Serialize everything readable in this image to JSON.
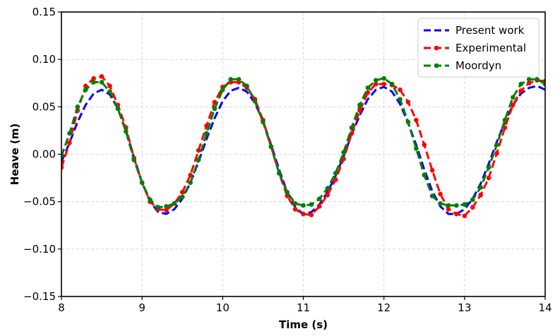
{
  "chart_data": {
    "type": "line",
    "title": "",
    "xlabel": "Time (s)",
    "ylabel": "Heave (m)",
    "xlim": [
      8,
      14
    ],
    "ylim": [
      -0.15,
      0.15
    ],
    "x_ticks": [
      8,
      9,
      10,
      11,
      12,
      13,
      14
    ],
    "y_ticks": [
      -0.15,
      -0.1,
      -0.05,
      0.0,
      0.05,
      0.1,
      0.15
    ],
    "x_tick_labels": [
      "8",
      "9",
      "10",
      "11",
      "12",
      "13",
      "14"
    ],
    "y_tick_labels": [
      "−0.15",
      "−0.10",
      "−0.05",
      "0.00",
      "0.05",
      "0.10",
      "0.15"
    ],
    "grid": true,
    "legend_position": "top-right",
    "series": [
      {
        "name": "Present work",
        "color": "#0000ff",
        "style": "dashed",
        "markers": false,
        "x": [
          8.0,
          8.1,
          8.2,
          8.3,
          8.4,
          8.5,
          8.6,
          8.7,
          8.8,
          8.9,
          9.0,
          9.1,
          9.2,
          9.3,
          9.4,
          9.5,
          9.6,
          9.7,
          9.8,
          9.9,
          10.0,
          10.1,
          10.2,
          10.3,
          10.4,
          10.5,
          10.6,
          10.7,
          10.8,
          10.9,
          11.0,
          11.1,
          11.2,
          11.3,
          11.4,
          11.5,
          11.6,
          11.7,
          11.8,
          11.9,
          12.0,
          12.1,
          12.2,
          12.3,
          12.4,
          12.5,
          12.6,
          12.7,
          12.8,
          12.9,
          13.0,
          13.1,
          13.2,
          13.3,
          13.4,
          13.5,
          13.6,
          13.7,
          13.8,
          13.9,
          14.0
        ],
        "values": [
          -0.008,
          0.012,
          0.034,
          0.052,
          0.064,
          0.068,
          0.063,
          0.048,
          0.025,
          -0.003,
          -0.03,
          -0.05,
          -0.061,
          -0.063,
          -0.058,
          -0.047,
          -0.03,
          -0.008,
          0.016,
          0.038,
          0.056,
          0.067,
          0.07,
          0.066,
          0.054,
          0.035,
          0.01,
          -0.016,
          -0.04,
          -0.056,
          -0.063,
          -0.061,
          -0.053,
          -0.04,
          -0.023,
          -0.002,
          0.021,
          0.041,
          0.058,
          0.068,
          0.071,
          0.066,
          0.053,
          0.033,
          0.01,
          -0.016,
          -0.039,
          -0.055,
          -0.063,
          -0.063,
          -0.058,
          -0.047,
          -0.031,
          -0.01,
          0.013,
          0.034,
          0.052,
          0.064,
          0.07,
          0.072,
          0.068
        ]
      },
      {
        "name": "Experimental",
        "color": "#ff0000",
        "style": "dashed",
        "markers": true,
        "x": [
          8.0,
          8.1,
          8.2,
          8.3,
          8.4,
          8.5,
          8.6,
          8.7,
          8.8,
          8.9,
          9.0,
          9.1,
          9.2,
          9.3,
          9.4,
          9.5,
          9.6,
          9.7,
          9.8,
          9.9,
          10.0,
          10.1,
          10.2,
          10.3,
          10.4,
          10.5,
          10.6,
          10.7,
          10.8,
          10.9,
          11.0,
          11.1,
          11.2,
          11.3,
          11.4,
          11.5,
          11.6,
          11.7,
          11.8,
          11.9,
          12.0,
          12.1,
          12.2,
          12.3,
          12.4,
          12.5,
          12.6,
          12.7,
          12.8,
          12.9,
          13.0,
          13.1,
          13.2,
          13.3,
          13.4,
          13.5,
          13.6,
          13.7,
          13.8,
          13.9,
          14.0
        ],
        "values": [
          -0.014,
          0.012,
          0.046,
          0.072,
          0.08,
          0.082,
          0.072,
          0.052,
          0.028,
          -0.004,
          -0.03,
          -0.05,
          -0.058,
          -0.059,
          -0.052,
          -0.04,
          -0.022,
          0.004,
          0.03,
          0.055,
          0.071,
          0.076,
          0.076,
          0.07,
          0.058,
          0.036,
          0.008,
          -0.02,
          -0.044,
          -0.058,
          -0.063,
          -0.064,
          -0.055,
          -0.043,
          -0.027,
          -0.005,
          0.022,
          0.046,
          0.065,
          0.074,
          0.074,
          0.073,
          0.068,
          0.055,
          0.036,
          0.01,
          -0.017,
          -0.042,
          -0.058,
          -0.063,
          -0.065,
          -0.056,
          -0.043,
          -0.025,
          0.001,
          0.028,
          0.052,
          0.067,
          0.075,
          0.078,
          0.077
        ]
      },
      {
        "name": "Moordyn",
        "color": "#008000",
        "style": "dashed",
        "markers": true,
        "x": [
          8.0,
          8.1,
          8.2,
          8.3,
          8.4,
          8.5,
          8.6,
          8.7,
          8.8,
          8.9,
          9.0,
          9.1,
          9.2,
          9.3,
          9.4,
          9.5,
          9.6,
          9.7,
          9.8,
          9.9,
          10.0,
          10.1,
          10.2,
          10.3,
          10.4,
          10.5,
          10.6,
          10.7,
          10.8,
          10.9,
          11.0,
          11.1,
          11.2,
          11.3,
          11.4,
          11.5,
          11.6,
          11.7,
          11.8,
          11.9,
          12.0,
          12.1,
          12.2,
          12.3,
          12.4,
          12.5,
          12.6,
          12.7,
          12.8,
          12.9,
          13.0,
          13.1,
          13.2,
          13.3,
          13.4,
          13.5,
          13.6,
          13.7,
          13.8,
          13.9,
          14.0
        ],
        "values": [
          -0.002,
          0.022,
          0.05,
          0.068,
          0.076,
          0.076,
          0.066,
          0.048,
          0.024,
          -0.006,
          -0.03,
          -0.048,
          -0.056,
          -0.055,
          -0.052,
          -0.045,
          -0.03,
          -0.006,
          0.022,
          0.048,
          0.068,
          0.079,
          0.079,
          0.072,
          0.056,
          0.034,
          0.008,
          -0.02,
          -0.04,
          -0.052,
          -0.054,
          -0.053,
          -0.047,
          -0.036,
          -0.02,
          0.002,
          0.028,
          0.052,
          0.07,
          0.078,
          0.08,
          0.074,
          0.058,
          0.034,
          0.006,
          -0.022,
          -0.044,
          -0.052,
          -0.054,
          -0.054,
          -0.053,
          -0.048,
          -0.035,
          -0.014,
          0.01,
          0.036,
          0.06,
          0.074,
          0.079,
          0.079,
          0.074
        ]
      }
    ]
  }
}
